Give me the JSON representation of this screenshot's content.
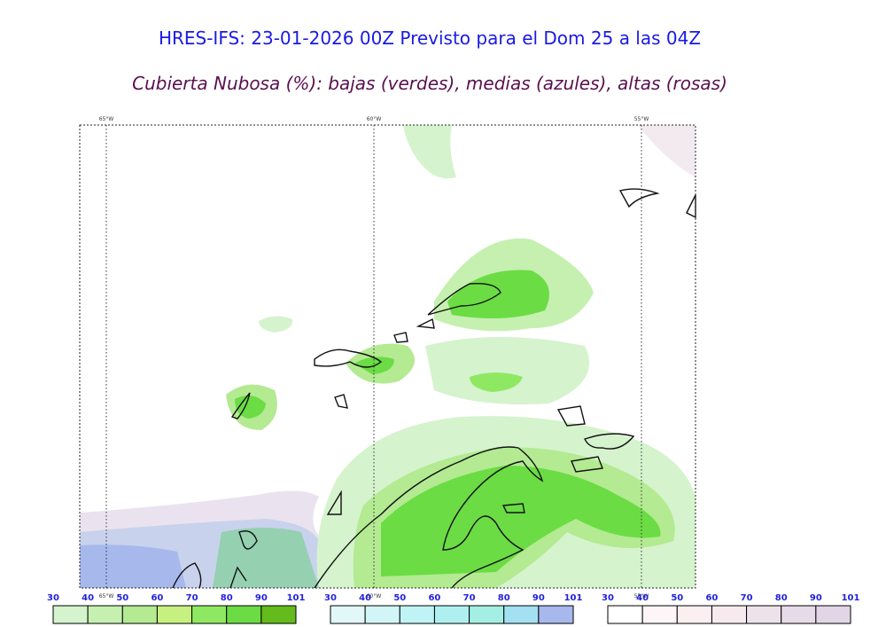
{
  "header": {
    "title": "HRES-IFS: 23-01-2026 00Z Previsto para el Dom 25 a las 04Z",
    "subtitle": "Cubierta Nubosa (%): bajas (verdes), medias (azules), altas (rosas)"
  },
  "map": {
    "longitude_labels": [
      "65°W",
      "60°W",
      "55°W"
    ]
  },
  "legends": [
    {
      "ticks": [
        30,
        40,
        50,
        60,
        70,
        80,
        90,
        101
      ],
      "colors": [
        "#d5f3cd",
        "#c5f0b0",
        "#b3ea92",
        "#c6f07f",
        "#8fe862",
        "#6bdc44",
        "#63bb1c"
      ]
    },
    {
      "ticks": [
        30,
        40,
        50,
        60,
        70,
        80,
        90,
        101
      ],
      "colors": [
        "#e2f8f8",
        "#d2f6f8",
        "#bff3f5",
        "#aef0f0",
        "#a4efe3",
        "#a2e0f2",
        "#a6b8ec"
      ]
    },
    {
      "ticks": [
        30,
        40,
        50,
        60,
        70,
        80,
        90,
        101
      ],
      "colors": [
        "#ffffff",
        "#fdf5f7",
        "#fbeff2",
        "#f7eaef",
        "#eee2ea",
        "#e6dbe8",
        "#e2d6e6"
      ]
    }
  ]
}
